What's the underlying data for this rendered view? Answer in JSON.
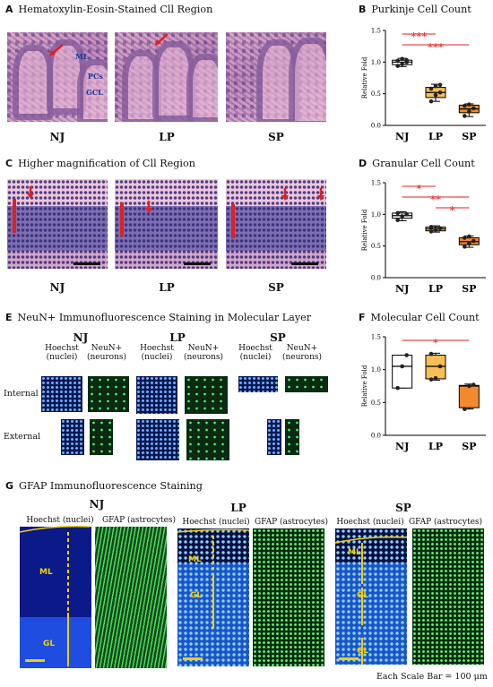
{
  "panelA": {
    "letter": "A",
    "title": "Hematoxylin-Eosin-Stained Cll Region",
    "labels": {
      "ml": "ML",
      "pcs": "PCs",
      "gcl": "GCL"
    },
    "conditions": [
      "NJ",
      "LP",
      "SP"
    ]
  },
  "panelB": {
    "letter": "B",
    "title": "Purkinje Cell Count"
  },
  "panelC": {
    "letter": "C",
    "title": "Higher magnification of Cll Region",
    "conditions": [
      "NJ",
      "LP",
      "SP"
    ]
  },
  "panelD": {
    "letter": "D",
    "title": "Granular Cell Count"
  },
  "panelE": {
    "letter": "E",
    "title": "NeuN+ Immunofluorescence Staining in Molecular Layer",
    "conditions": [
      "NJ",
      "LP",
      "SP"
    ],
    "col1": "Hoechst\n(nuclei)",
    "col2": "NeuN+\n(neurons)",
    "rows": [
      "Internal",
      "External"
    ]
  },
  "panelF": {
    "letter": "F",
    "title": "Molecular Cell Count"
  },
  "panelG": {
    "letter": "G",
    "title": "GFAP Immunofluorescence Staining",
    "conditions": [
      "NJ",
      "LP",
      "SP"
    ],
    "col1": "Hoechst (nuclei)",
    "col2": "GFAP (astrocytes)",
    "ml": "ML",
    "gl": "GL",
    "scale": "Each Scale Bar = 100 μm"
  },
  "colors": {
    "nj": "#ffffff",
    "lp": "#f7be55",
    "sp": "#f08a2c",
    "sig": "#e02020"
  },
  "chart_data": [
    {
      "type": "box",
      "panel": "B",
      "ylabel": "Relative Fold",
      "categories": [
        "NJ",
        "LP",
        "SP"
      ],
      "ylim": [
        0,
        1.5
      ],
      "yticks": [
        "0.0",
        "0.5",
        "1.0",
        "1.5"
      ],
      "boxes": [
        {
          "min": 0.93,
          "q1": 0.96,
          "median": 1.0,
          "q3": 1.03,
          "max": 1.06,
          "points": [
            0.94,
            0.97,
            1.0,
            1.02,
            1.05,
            1.03
          ]
        },
        {
          "min": 0.38,
          "q1": 0.44,
          "median": 0.52,
          "q3": 0.6,
          "max": 0.65,
          "points": [
            0.38,
            0.48,
            0.52,
            0.58,
            0.62,
            0.64
          ]
        },
        {
          "min": 0.14,
          "q1": 0.2,
          "median": 0.26,
          "q3": 0.32,
          "max": 0.34,
          "points": [
            0.15,
            0.22,
            0.27,
            0.31,
            0.33
          ]
        }
      ],
      "significance": [
        {
          "from": "NJ",
          "to": "LP",
          "label": "***"
        },
        {
          "from": "NJ",
          "to": "SP",
          "label": "***"
        }
      ]
    },
    {
      "type": "box",
      "panel": "D",
      "ylabel": "Relative Fold",
      "categories": [
        "NJ",
        "LP",
        "SP"
      ],
      "ylim": [
        0,
        1.5
      ],
      "yticks": [
        "0.0",
        "0.5",
        "1.0",
        "1.5"
      ],
      "boxes": [
        {
          "min": 0.9,
          "q1": 0.94,
          "median": 0.98,
          "q3": 1.02,
          "max": 1.04,
          "points": [
            0.91,
            0.97,
            1.0,
            1.02
          ]
        },
        {
          "min": 0.72,
          "q1": 0.74,
          "median": 0.77,
          "q3": 0.8,
          "max": 0.82,
          "points": [
            0.73,
            0.76,
            0.78,
            0.8
          ]
        },
        {
          "min": 0.48,
          "q1": 0.52,
          "median": 0.57,
          "q3": 0.63,
          "max": 0.66,
          "points": [
            0.49,
            0.54,
            0.58,
            0.63,
            0.65
          ]
        }
      ],
      "significance": [
        {
          "from": "NJ",
          "to": "LP",
          "label": "*"
        },
        {
          "from": "NJ",
          "to": "SP",
          "label": "**"
        },
        {
          "from": "LP",
          "to": "SP",
          "label": "*"
        }
      ]
    },
    {
      "type": "box",
      "panel": "F",
      "ylabel": "Relative Fold",
      "categories": [
        "NJ",
        "LP",
        "SP"
      ],
      "ylim": [
        0,
        1.5
      ],
      "yticks": [
        "0.0",
        "0.5",
        "1.0",
        "1.5"
      ],
      "boxes": [
        {
          "min": 0.72,
          "q1": 0.72,
          "median": 1.05,
          "q3": 1.22,
          "max": 1.22,
          "points": [
            0.72,
            1.05,
            1.22
          ]
        },
        {
          "min": 0.84,
          "q1": 0.86,
          "median": 1.05,
          "q3": 1.22,
          "max": 1.25,
          "points": [
            0.85,
            0.87,
            1.05,
            1.24
          ]
        },
        {
          "min": 0.4,
          "q1": 0.42,
          "median": 0.75,
          "q3": 0.76,
          "max": 0.78,
          "points": [
            0.4,
            0.75,
            0.77
          ]
        }
      ],
      "significance": [
        {
          "from": "NJ",
          "to": "SP",
          "label": "*"
        }
      ]
    }
  ]
}
